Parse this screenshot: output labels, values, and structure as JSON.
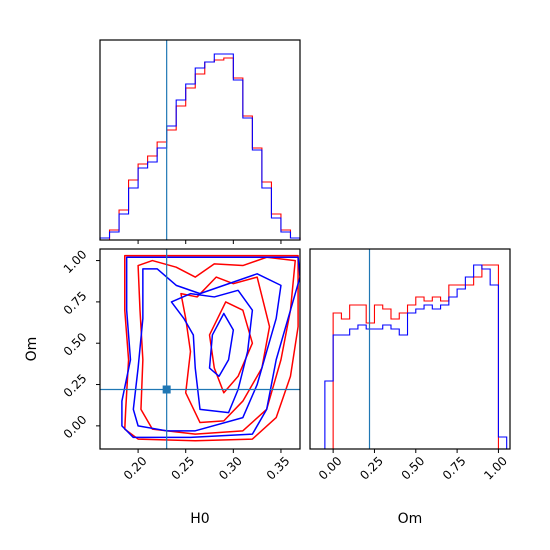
{
  "chart_data": [
    {
      "type": "histogram",
      "panel": "H0 marginal",
      "xlim": [
        0.16,
        0.37
      ],
      "bin_edges": [
        0.16,
        0.17,
        0.18,
        0.19,
        0.2,
        0.21,
        0.22,
        0.23,
        0.24,
        0.25,
        0.26,
        0.27,
        0.28,
        0.29,
        0.3,
        0.31,
        0.32,
        0.33,
        0.34,
        0.35,
        0.36,
        0.37
      ],
      "series": [
        {
          "color": "#ff0000",
          "values": [
            0.0,
            0.05,
            0.15,
            0.3,
            0.38,
            0.42,
            0.49,
            0.55,
            0.67,
            0.76,
            0.83,
            0.89,
            0.9,
            0.91,
            0.81,
            0.62,
            0.46,
            0.29,
            0.13,
            0.05,
            0.01
          ]
        },
        {
          "color": "#0000ff",
          "values": [
            0.01,
            0.04,
            0.13,
            0.26,
            0.36,
            0.39,
            0.46,
            0.57,
            0.7,
            0.78,
            0.86,
            0.89,
            0.93,
            0.93,
            0.8,
            0.61,
            0.45,
            0.26,
            0.11,
            0.04,
            0.01
          ]
        }
      ],
      "truth_x": 0.23,
      "truth_color": "#1f77b4"
    },
    {
      "type": "contour",
      "panel": "H0 vs Om",
      "xlabel": "H0",
      "ylabel": "Om",
      "xlim": [
        0.16,
        0.37
      ],
      "ylim": [
        -0.14,
        1.07
      ],
      "xticks": [
        "0.20",
        "0.25",
        "0.30",
        "0.35"
      ],
      "yticks": [
        "0.00",
        "0.25",
        "0.50",
        "0.75",
        "1.00"
      ],
      "truth": {
        "x": 0.23,
        "y": 0.22,
        "color": "#1f77b4"
      },
      "series": [
        {
          "color": "#ff0000",
          "contours": [
            [
              [
                0.186,
                1.03
              ],
              [
                0.186,
                0.7
              ],
              [
                0.19,
                0.4
              ],
              [
                0.187,
                0.1
              ],
              [
                0.186,
                -0.02
              ],
              [
                0.2,
                -0.08
              ],
              [
                0.26,
                -0.09
              ],
              [
                0.32,
                -0.08
              ],
              [
                0.345,
                0.05
              ],
              [
                0.36,
                0.3
              ],
              [
                0.368,
                0.6
              ],
              [
                0.368,
                1.03
              ]
            ],
            [
              [
                0.2,
                0.97
              ],
              [
                0.202,
                0.7
              ],
              [
                0.205,
                0.4
              ],
              [
                0.203,
                0.1
              ],
              [
                0.215,
                -0.02
              ],
              [
                0.26,
                -0.05
              ],
              [
                0.31,
                -0.03
              ],
              [
                0.335,
                0.1
              ],
              [
                0.35,
                0.4
              ],
              [
                0.36,
                0.7
              ],
              [
                0.365,
                1.0
              ],
              [
                0.335,
                1.02
              ],
              [
                0.31,
                0.97
              ],
              [
                0.28,
                0.98
              ],
              [
                0.26,
                0.9
              ],
              [
                0.24,
                0.96
              ],
              [
                0.215,
                1.0
              ]
            ],
            [
              [
                0.245,
                0.8
              ],
              [
                0.262,
                0.78
              ],
              [
                0.282,
                0.9
              ],
              [
                0.3,
                0.86
              ],
              [
                0.325,
                0.9
              ],
              [
                0.338,
                0.6
              ],
              [
                0.33,
                0.35
              ],
              [
                0.31,
                0.15
              ],
              [
                0.29,
                0.03
              ],
              [
                0.265,
                0.02
              ],
              [
                0.25,
                0.2
              ],
              [
                0.255,
                0.45
              ],
              [
                0.25,
                0.65
              ]
            ],
            [
              [
                0.275,
                0.55
              ],
              [
                0.292,
                0.75
              ],
              [
                0.31,
                0.7
              ],
              [
                0.32,
                0.5
              ],
              [
                0.305,
                0.3
              ],
              [
                0.29,
                0.2
              ],
              [
                0.28,
                0.35
              ]
            ]
          ]
        },
        {
          "color": "#0000ff",
          "contours": [
            [
              [
                0.188,
                1.02
              ],
              [
                0.188,
                0.7
              ],
              [
                0.192,
                0.4
              ],
              [
                0.183,
                0.15
              ],
              [
                0.183,
                0.0
              ],
              [
                0.195,
                -0.07
              ],
              [
                0.255,
                -0.07
              ],
              [
                0.32,
                -0.05
              ],
              [
                0.335,
                0.1
              ],
              [
                0.345,
                0.4
              ],
              [
                0.36,
                0.7
              ],
              [
                0.37,
                0.9
              ],
              [
                0.368,
                1.02
              ]
            ],
            [
              [
                0.205,
                0.95
              ],
              [
                0.205,
                0.65
              ],
              [
                0.2,
                0.35
              ],
              [
                0.195,
                0.1
              ],
              [
                0.2,
                0.0
              ],
              [
                0.23,
                -0.03
              ],
              [
                0.26,
                -0.03
              ],
              [
                0.31,
                0.05
              ],
              [
                0.325,
                0.25
              ],
              [
                0.335,
                0.45
              ],
              [
                0.345,
                0.65
              ],
              [
                0.35,
                0.85
              ],
              [
                0.325,
                0.92
              ],
              [
                0.29,
                0.85
              ],
              [
                0.265,
                0.8
              ],
              [
                0.24,
                0.85
              ],
              [
                0.22,
                0.95
              ]
            ],
            [
              [
                0.235,
                0.75
              ],
              [
                0.248,
                0.65
              ],
              [
                0.258,
                0.55
              ],
              [
                0.26,
                0.35
              ],
              [
                0.265,
                0.1
              ],
              [
                0.295,
                0.08
              ],
              [
                0.305,
                0.22
              ],
              [
                0.315,
                0.45
              ],
              [
                0.32,
                0.7
              ],
              [
                0.305,
                0.82
              ],
              [
                0.28,
                0.78
              ],
              [
                0.255,
                0.8
              ]
            ],
            [
              [
                0.275,
                0.35
              ],
              [
                0.278,
                0.55
              ],
              [
                0.29,
                0.68
              ],
              [
                0.3,
                0.58
              ],
              [
                0.295,
                0.4
              ],
              [
                0.285,
                0.3
              ]
            ]
          ]
        }
      ]
    },
    {
      "type": "histogram",
      "panel": "Om marginal",
      "xlabel": "Om",
      "xlim": [
        -0.14,
        1.07
      ],
      "xticks": [
        "0.00",
        "0.25",
        "0.50",
        "0.75",
        "1.00"
      ],
      "bin_edges": [
        -0.1,
        -0.05,
        0.0,
        0.05,
        0.1,
        0.15,
        0.2,
        0.25,
        0.3,
        0.35,
        0.4,
        0.45,
        0.5,
        0.55,
        0.6,
        0.65,
        0.7,
        0.75,
        0.8,
        0.85,
        0.9,
        0.95,
        1.0,
        1.05
      ],
      "series": [
        {
          "color": "#ff0000",
          "values": [
            0.0,
            0.0,
            0.68,
            0.65,
            0.72,
            0.72,
            0.63,
            0.72,
            0.7,
            0.65,
            0.68,
            0.72,
            0.76,
            0.74,
            0.76,
            0.74,
            0.82,
            0.82,
            0.82,
            0.86,
            0.92,
            0.92,
            0.0
          ]
        },
        {
          "color": "#0000ff",
          "values": [
            0.0,
            0.34,
            0.57,
            0.57,
            0.6,
            0.62,
            0.6,
            0.6,
            0.62,
            0.6,
            0.57,
            0.68,
            0.7,
            0.72,
            0.7,
            0.72,
            0.76,
            0.8,
            0.86,
            0.92,
            0.9,
            0.82,
            0.06
          ]
        }
      ],
      "truth_x": 0.22,
      "truth_color": "#1f77b4"
    }
  ]
}
